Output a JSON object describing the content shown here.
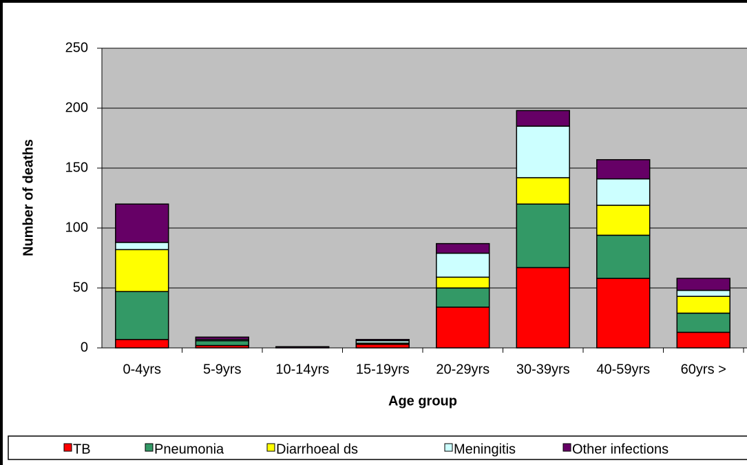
{
  "chart_data": {
    "type": "stacked_bar",
    "xlabel": "Age group",
    "ylabel": "Number of deaths",
    "categories": [
      "0-4yrs",
      "5-9yrs",
      "10-14yrs",
      "15-19yrs",
      "20-29yrs",
      "30-39yrs",
      "40-59yrs",
      "60yrs >"
    ],
    "series": [
      {
        "name": "TB",
        "color": "#ff0000",
        "values": [
          7,
          2,
          0,
          3,
          34,
          67,
          58,
          13
        ]
      },
      {
        "name": "Pneumonia",
        "color": "#339966",
        "values": [
          40,
          4,
          0,
          0,
          16,
          53,
          36,
          16
        ]
      },
      {
        "name": "Diarrhoeal ds",
        "color": "#ffff00",
        "values": [
          35,
          0,
          0,
          1,
          9,
          22,
          25,
          14
        ]
      },
      {
        "name": "Meningitis",
        "color": "#ccffff",
        "values": [
          6,
          1,
          0,
          2,
          20,
          43,
          22,
          5
        ]
      },
      {
        "name": "Other infections",
        "color": "#660066",
        "values": [
          32,
          2,
          1,
          1,
          8,
          13,
          16,
          10
        ]
      }
    ],
    "ylim": [
      0,
      250
    ],
    "yticks": [
      0,
      50,
      100,
      150,
      200,
      250
    ],
    "grid": true,
    "plot_background": "#c0c0c0",
    "legend": "bottom"
  }
}
